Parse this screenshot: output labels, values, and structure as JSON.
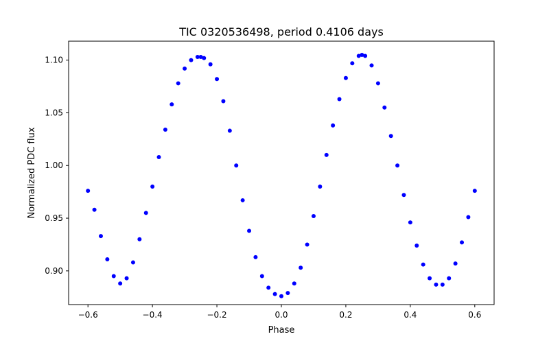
{
  "chart_data": {
    "type": "scatter",
    "title": "TIC 0320536498, period 0.4106 days",
    "xlabel": "Phase",
    "ylabel": "Normalized PDC flux",
    "xlim": [
      -0.66,
      0.66
    ],
    "ylim": [
      0.868,
      1.118
    ],
    "grid": false,
    "legend": "none",
    "marker_color": "#0000ff",
    "x_ticks": [
      -0.6,
      -0.4,
      -0.2,
      0.0,
      0.2,
      0.4,
      0.6
    ],
    "x_tick_labels": [
      "−0.6",
      "−0.4",
      "−0.2",
      "0.0",
      "0.2",
      "0.4",
      "0.6"
    ],
    "y_ticks": [
      0.9,
      0.95,
      1.0,
      1.05,
      1.1
    ],
    "y_tick_labels": [
      "0.90",
      "0.95",
      "1.00",
      "1.05",
      "1.10"
    ],
    "series": [
      {
        "name": "Normalized PDC flux",
        "x": [
          -0.6,
          -0.58,
          -0.56,
          -0.54,
          -0.52,
          -0.5,
          -0.48,
          -0.46,
          -0.44,
          -0.42,
          -0.4,
          -0.38,
          -0.36,
          -0.34,
          -0.32,
          -0.3,
          -0.28,
          -0.26,
          -0.25,
          -0.24,
          -0.22,
          -0.2,
          -0.18,
          -0.16,
          -0.14,
          -0.12,
          -0.1,
          -0.08,
          -0.06,
          -0.04,
          -0.02,
          0.0,
          0.02,
          0.04,
          0.06,
          0.08,
          0.1,
          0.12,
          0.14,
          0.16,
          0.18,
          0.2,
          0.22,
          0.24,
          0.25,
          0.26,
          0.28,
          0.3,
          0.32,
          0.34,
          0.36,
          0.38,
          0.4,
          0.42,
          0.44,
          0.46,
          0.48,
          0.5,
          0.52,
          0.54,
          0.56,
          0.58,
          0.6
        ],
        "y": [
          0.976,
          0.958,
          0.933,
          0.911,
          0.895,
          0.888,
          0.893,
          0.908,
          0.93,
          0.955,
          0.98,
          1.008,
          1.034,
          1.058,
          1.078,
          1.092,
          1.1,
          1.103,
          1.103,
          1.102,
          1.096,
          1.082,
          1.061,
          1.033,
          1.0,
          0.967,
          0.938,
          0.913,
          0.895,
          0.884,
          0.878,
          0.876,
          0.879,
          0.888,
          0.903,
          0.925,
          0.952,
          0.98,
          1.01,
          1.038,
          1.063,
          1.083,
          1.097,
          1.104,
          1.105,
          1.104,
          1.095,
          1.078,
          1.055,
          1.028,
          1.0,
          0.972,
          0.946,
          0.924,
          0.906,
          0.893,
          0.887,
          0.887,
          0.893,
          0.907,
          0.927,
          0.951,
          0.976
        ]
      }
    ]
  }
}
